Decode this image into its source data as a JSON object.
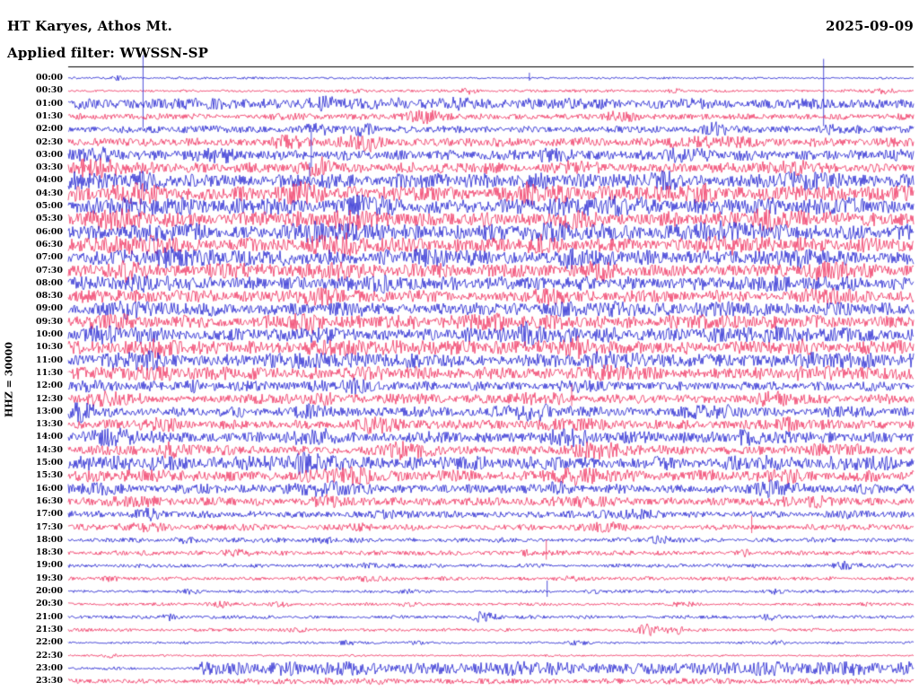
{
  "header": {
    "station": "HT Karyes, Athos Mt.",
    "date": "2025-09-09",
    "filter_label": "Applied filter: WWSSN-SP"
  },
  "axis": {
    "scale_label": "HHZ = 30000"
  },
  "colors": {
    "blue": "#1414cd",
    "red": "#ef2455",
    "text": "#000000",
    "frame": "#000000",
    "background": "#ffffff"
  },
  "chart_data": {
    "type": "line",
    "subtype": "seismogram-helicorder",
    "station": "HT Karyes, Athos Mt.",
    "channel": "HHZ",
    "gain_scale": "30000",
    "date": "2025-09-09",
    "filter": "WWSSN-SP",
    "minutes_per_line": 30,
    "line_color_rule": "hour lines blue, half-hour lines red (alternating)",
    "amplitude_units": "relative trace amplitude in px (estimated)",
    "rows": [
      {
        "t": "00:00",
        "c": "b",
        "a": 1.2,
        "bursts": [
          [
            0.06,
            2,
            0.006
          ]
        ],
        "spikes": [
          [
            0.545,
            6
          ]
        ]
      },
      {
        "t": "00:30",
        "c": "r",
        "a": 1.5,
        "bursts": [
          [
            0.34,
            2.5,
            0.01
          ],
          [
            0.475,
            3,
            0.008
          ],
          [
            0.72,
            2,
            0.006
          ],
          [
            0.965,
            3,
            0.012
          ]
        ]
      },
      {
        "t": "01:00",
        "c": "b",
        "a": 6.5,
        "bursts": [
          [
            0.3,
            3,
            0.02
          ],
          [
            0.44,
            4,
            0.015
          ]
        ],
        "spikes": [
          [
            0.088,
            54
          ],
          [
            0.893,
            50
          ]
        ]
      },
      {
        "t": "01:30",
        "c": "r",
        "a": 3.5,
        "bursts": [
          [
            0.42,
            4,
            0.02
          ],
          [
            0.65,
            3,
            0.02
          ]
        ]
      },
      {
        "t": "02:00",
        "c": "b",
        "a": 4,
        "bursts": [
          [
            0.29,
            6,
            0.01
          ],
          [
            0.34,
            5,
            0.012
          ],
          [
            0.77,
            5,
            0.02
          ],
          [
            0.92,
            4,
            0.015
          ]
        ]
      },
      {
        "t": "02:30",
        "c": "r",
        "a": 5,
        "bursts": [
          [
            0.25,
            4,
            0.015
          ],
          [
            0.345,
            9,
            0.02
          ],
          [
            0.76,
            4,
            0.03
          ]
        ]
      },
      {
        "t": "03:00",
        "c": "b",
        "a": 6,
        "bursts": [
          [
            0.04,
            5,
            0.02
          ],
          [
            0.17,
            4,
            0.02
          ],
          [
            0.57,
            4,
            0.02
          ],
          [
            0.73,
            5,
            0.025
          ]
        ],
        "spikes": [
          [
            0.287,
            28
          ]
        ]
      },
      {
        "t": "03:30",
        "c": "r",
        "a": 6,
        "bursts": [
          [
            0.04,
            7,
            0.025
          ],
          [
            0.3,
            6,
            0.015
          ],
          [
            0.6,
            5,
            0.02
          ],
          [
            0.86,
            5,
            0.02
          ]
        ]
      },
      {
        "t": "04:00",
        "c": "b",
        "a": 8,
        "bursts": [
          [
            0.02,
            7,
            0.015
          ],
          [
            0.09,
            5,
            0.02
          ],
          [
            0.56,
            6,
            0.02
          ],
          [
            0.7,
            5,
            0.02
          ],
          [
            0.88,
            6,
            0.02
          ]
        ],
        "spikes": [
          [
            0.285,
            20
          ]
        ]
      },
      {
        "t": "04:30",
        "c": "r",
        "a": 8,
        "bursts": [
          [
            0.08,
            5,
            0.02
          ],
          [
            0.28,
            5,
            0.02
          ],
          [
            0.56,
            7,
            0.02
          ],
          [
            0.74,
            5,
            0.02
          ]
        ]
      },
      {
        "t": "05:00",
        "c": "b",
        "a": 9,
        "bursts": [
          [
            0.1,
            4,
            0.03
          ],
          [
            0.35,
            5,
            0.02
          ],
          [
            0.62,
            5,
            0.03
          ],
          [
            0.92,
            5,
            0.02
          ]
        ]
      },
      {
        "t": "05:30",
        "c": "r",
        "a": 8.5,
        "bursts": [
          [
            0.05,
            5,
            0.02
          ],
          [
            0.33,
            5,
            0.02
          ],
          [
            0.6,
            6,
            0.02
          ],
          [
            0.84,
            5,
            0.02
          ]
        ]
      },
      {
        "t": "06:00",
        "c": "b",
        "a": 9,
        "bursts": [
          [
            0.11,
            5,
            0.02
          ],
          [
            0.3,
            5,
            0.02
          ],
          [
            0.57,
            5,
            0.02
          ],
          [
            0.78,
            5,
            0.02
          ]
        ]
      },
      {
        "t": "06:30",
        "c": "r",
        "a": 8.5,
        "bursts": [
          [
            0.07,
            5,
            0.02
          ],
          [
            0.31,
            6,
            0.02
          ],
          [
            0.56,
            5,
            0.02
          ],
          [
            0.79,
            6,
            0.02
          ]
        ]
      },
      {
        "t": "07:00",
        "c": "b",
        "a": 8.5,
        "bursts": [
          [
            0.12,
            5,
            0.02
          ],
          [
            0.4,
            5,
            0.02
          ],
          [
            0.6,
            5,
            0.02
          ],
          [
            0.88,
            5,
            0.02
          ]
        ]
      },
      {
        "t": "07:30",
        "c": "r",
        "a": 8,
        "bursts": [
          [
            0.06,
            5,
            0.02
          ],
          [
            0.33,
            5,
            0.02
          ],
          [
            0.63,
            5,
            0.02
          ],
          [
            0.9,
            5,
            0.02
          ]
        ]
      },
      {
        "t": "08:00",
        "c": "b",
        "a": 7.5,
        "bursts": [
          [
            0.1,
            4,
            0.02
          ],
          [
            0.36,
            4,
            0.02
          ],
          [
            0.6,
            4,
            0.02
          ],
          [
            0.83,
            4,
            0.02
          ]
        ]
      },
      {
        "t": "08:30",
        "c": "r",
        "a": 7,
        "bursts": [
          [
            0.05,
            4,
            0.02
          ],
          [
            0.3,
            4,
            0.02
          ],
          [
            0.58,
            4,
            0.02
          ],
          [
            0.88,
            4,
            0.02
          ]
        ]
      },
      {
        "t": "09:00",
        "c": "b",
        "a": 7.5,
        "bursts": [
          [
            0.06,
            5,
            0.02
          ],
          [
            0.35,
            4,
            0.02
          ],
          [
            0.63,
            5,
            0.02
          ],
          [
            0.8,
            4,
            0.02
          ]
        ]
      },
      {
        "t": "09:30",
        "c": "r",
        "a": 7.5,
        "bursts": [
          [
            0.06,
            4,
            0.02
          ],
          [
            0.28,
            5,
            0.02
          ],
          [
            0.5,
            4,
            0.02
          ],
          [
            0.75,
            4,
            0.02
          ]
        ]
      },
      {
        "t": "10:00",
        "c": "b",
        "a": 8.5,
        "bursts": [
          [
            0.05,
            5,
            0.02
          ],
          [
            0.3,
            5,
            0.02
          ],
          [
            0.55,
            6,
            0.02
          ],
          [
            0.8,
            5,
            0.02
          ]
        ]
      },
      {
        "t": "10:30",
        "c": "r",
        "a": 8,
        "bursts": [
          [
            0.1,
            5,
            0.02
          ],
          [
            0.33,
            5,
            0.02
          ],
          [
            0.6,
            6,
            0.02
          ],
          [
            0.86,
            5,
            0.02
          ]
        ]
      },
      {
        "t": "11:00",
        "c": "b",
        "a": 8,
        "bursts": [
          [
            0.08,
            5,
            0.02
          ],
          [
            0.3,
            5,
            0.02
          ],
          [
            0.63,
            6,
            0.02
          ],
          [
            0.9,
            5,
            0.02
          ]
        ]
      },
      {
        "t": "11:30",
        "c": "r",
        "a": 7,
        "bursts": [
          [
            0.1,
            5,
            0.02
          ],
          [
            0.35,
            5,
            0.02
          ],
          [
            0.65,
            5,
            0.02
          ],
          [
            0.88,
            4,
            0.02
          ]
        ]
      },
      {
        "t": "12:00",
        "c": "b",
        "a": 5.5,
        "bursts": [
          [
            0.02,
            6,
            0.015
          ],
          [
            0.16,
            5,
            0.015
          ],
          [
            0.33,
            5,
            0.02
          ],
          [
            0.6,
            4,
            0.02
          ]
        ]
      },
      {
        "t": "12:30",
        "c": "r",
        "a": 5.5,
        "bursts": [
          [
            0.05,
            5,
            0.02
          ],
          [
            0.3,
            5,
            0.02
          ],
          [
            0.55,
            5,
            0.02
          ],
          [
            0.83,
            5,
            0.02
          ]
        ],
        "spikes": [
          [
            0.595,
            16
          ]
        ]
      },
      {
        "t": "13:00",
        "c": "b",
        "a": 6,
        "bursts": [
          [
            0.02,
            7,
            0.012
          ],
          [
            0.3,
            5,
            0.02
          ],
          [
            0.55,
            5,
            0.02
          ],
          [
            0.76,
            5,
            0.02
          ]
        ]
      },
      {
        "t": "13:30",
        "c": "r",
        "a": 5.5,
        "bursts": [
          [
            0.1,
            5,
            0.02
          ],
          [
            0.36,
            5,
            0.02
          ],
          [
            0.6,
            5,
            0.02
          ],
          [
            0.86,
            5,
            0.02
          ]
        ]
      },
      {
        "t": "14:00",
        "c": "b",
        "a": 6.5,
        "bursts": [
          [
            0.06,
            5,
            0.02
          ],
          [
            0.3,
            5,
            0.02
          ],
          [
            0.58,
            6,
            0.02
          ],
          [
            0.82,
            5,
            0.02
          ]
        ]
      },
      {
        "t": "14:30",
        "c": "r",
        "a": 5.5,
        "bursts": [
          [
            0.13,
            5,
            0.02
          ],
          [
            0.4,
            5,
            0.02
          ],
          [
            0.62,
            5,
            0.02
          ],
          [
            0.9,
            5,
            0.02
          ]
        ]
      },
      {
        "t": "15:00",
        "c": "b",
        "a": 7.5,
        "bursts": [
          [
            0.05,
            5,
            0.02
          ],
          [
            0.28,
            6,
            0.02
          ],
          [
            0.55,
            5,
            0.02
          ],
          [
            0.8,
            5,
            0.02
          ]
        ]
      },
      {
        "t": "15:30",
        "c": "r",
        "a": 6.5,
        "bursts": [
          [
            0.08,
            5,
            0.02
          ],
          [
            0.33,
            5,
            0.02
          ],
          [
            0.6,
            5,
            0.02
          ],
          [
            0.85,
            5,
            0.02
          ]
        ]
      },
      {
        "t": "16:00",
        "c": "b",
        "a": 5.5,
        "bursts": [
          [
            0.04,
            5,
            0.02
          ],
          [
            0.3,
            6,
            0.015
          ],
          [
            0.58,
            4,
            0.02
          ],
          [
            0.82,
            5,
            0.02
          ]
        ]
      },
      {
        "t": "16:30",
        "c": "r",
        "a": 4.5,
        "bursts": [
          [
            0.07,
            4,
            0.02
          ],
          [
            0.3,
            5,
            0.015
          ],
          [
            0.6,
            4,
            0.02
          ],
          [
            0.88,
            4,
            0.02
          ]
        ]
      },
      {
        "t": "17:00",
        "c": "b",
        "a": 4,
        "bursts": [
          [
            0.1,
            4,
            0.015
          ],
          [
            0.38,
            4,
            0.015
          ],
          [
            0.66,
            4,
            0.02
          ],
          [
            0.92,
            3,
            0.02
          ]
        ]
      },
      {
        "t": "17:30",
        "c": "r",
        "a": 3.5,
        "bursts": [
          [
            0.08,
            3,
            0.02
          ],
          [
            0.35,
            4,
            0.015
          ],
          [
            0.63,
            3,
            0.02
          ]
        ],
        "spikes": [
          [
            0.808,
            13
          ]
        ]
      },
      {
        "t": "18:00",
        "c": "b",
        "a": 2.6,
        "bursts": [
          [
            0.14,
            3,
            0.01
          ],
          [
            0.3,
            2,
            0.015
          ],
          [
            0.7,
            3,
            0.012
          ]
        ]
      },
      {
        "t": "18:30",
        "c": "r",
        "a": 2.6,
        "bursts": [
          [
            0.2,
            3,
            0.012
          ],
          [
            0.55,
            2,
            0.015
          ],
          [
            0.8,
            3,
            0.01
          ]
        ],
        "spikes": [
          [
            0.565,
            15
          ]
        ]
      },
      {
        "t": "19:00",
        "c": "b",
        "a": 2.2,
        "bursts": [
          [
            0.35,
            2,
            0.015
          ],
          [
            0.92,
            4,
            0.012
          ]
        ]
      },
      {
        "t": "19:30",
        "c": "r",
        "a": 2.2,
        "bursts": [
          [
            0.05,
            3,
            0.01
          ],
          [
            0.35,
            2,
            0.015
          ],
          [
            0.6,
            2,
            0.01
          ]
        ]
      },
      {
        "t": "20:00",
        "c": "b",
        "a": 1.8,
        "bursts": [
          [
            0.14,
            2,
            0.01
          ],
          [
            0.4,
            2,
            0.01
          ],
          [
            0.62,
            2,
            0.008
          ],
          [
            0.84,
            3,
            0.008
          ]
        ],
        "spikes": [
          [
            0.566,
            12
          ]
        ]
      },
      {
        "t": "20:30",
        "c": "r",
        "a": 1.8,
        "bursts": [
          [
            0.18,
            3,
            0.008
          ],
          [
            0.25,
            3,
            0.008
          ],
          [
            0.4,
            2,
            0.01
          ],
          [
            0.73,
            3,
            0.008
          ],
          [
            0.95,
            2,
            0.008
          ]
        ]
      },
      {
        "t": "21:00",
        "c": "b",
        "a": 2,
        "bursts": [
          [
            0.12,
            3,
            0.008
          ],
          [
            0.49,
            6,
            0.012
          ],
          [
            0.83,
            3,
            0.01
          ]
        ]
      },
      {
        "t": "21:30",
        "c": "r",
        "a": 1.8,
        "bursts": [
          [
            0.27,
            3,
            0.008
          ],
          [
            0.685,
            7,
            0.008
          ],
          [
            0.715,
            7,
            0.008
          ]
        ]
      },
      {
        "t": "22:00",
        "c": "b",
        "a": 1.4,
        "bursts": [
          [
            0.33,
            2,
            0.008
          ],
          [
            0.41,
            2,
            0.008
          ],
          [
            0.6,
            2,
            0.01
          ],
          [
            0.84,
            2,
            0.008
          ]
        ]
      },
      {
        "t": "22:30",
        "c": "r",
        "a": 1.1,
        "bursts": [
          [
            0.05,
            2,
            0.006
          ]
        ]
      },
      {
        "t": "23:00",
        "c": "b",
        "a": 1.6,
        "step": [
          0.155,
          8
        ],
        "bursts": [
          [
            0.05,
            2,
            0.006
          ]
        ]
      },
      {
        "t": "23:30",
        "c": "r",
        "a": 3.2,
        "bursts": [
          [
            0.3,
            1,
            0.05
          ]
        ]
      }
    ]
  }
}
